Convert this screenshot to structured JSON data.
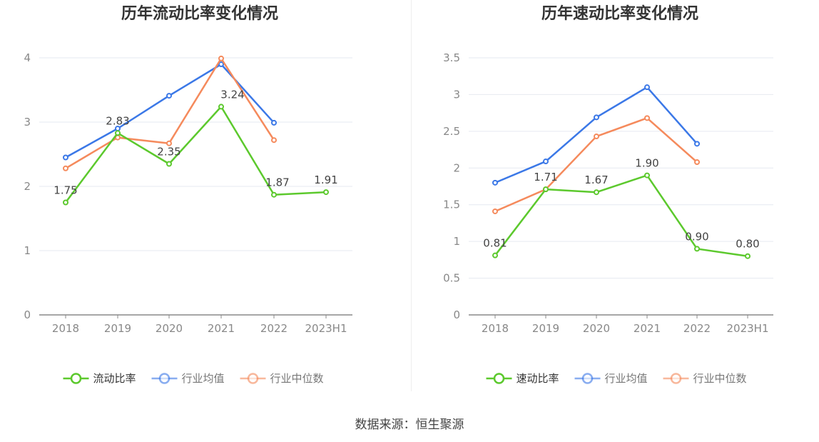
{
  "chart_data": [
    {
      "type": "line",
      "title": "历年流动比率变化情况",
      "categories": [
        "2018",
        "2019",
        "2020",
        "2021",
        "2022",
        "2023H1"
      ],
      "ylim": [
        0,
        4
      ],
      "yticks": [
        0,
        1,
        2,
        3,
        4
      ],
      "ytick_labels": [
        "0",
        "1",
        "2",
        "3",
        "4"
      ],
      "grid": true,
      "legend_position": "bottom-center",
      "series": [
        {
          "name": "流动比率",
          "color": "#5cc92d",
          "values": [
            1.75,
            2.83,
            2.35,
            3.24,
            1.87,
            1.91
          ],
          "labels": [
            "1.75",
            "2.83",
            "2.35",
            "3.24",
            "1.87",
            "1.91"
          ],
          "show_labels": true
        },
        {
          "name": "行业均值",
          "color": "#3b78e7",
          "values": [
            2.45,
            2.9,
            3.41,
            3.9,
            2.99,
            null
          ],
          "show_labels": false
        },
        {
          "name": "行业中位数",
          "color": "#f58a5c",
          "values": [
            2.28,
            2.76,
            2.67,
            3.99,
            2.72,
            null
          ],
          "show_labels": false
        }
      ]
    },
    {
      "type": "line",
      "title": "历年速动比率变化情况",
      "categories": [
        "2018",
        "2019",
        "2020",
        "2021",
        "2022",
        "2023H1"
      ],
      "ylim": [
        0,
        3.5
      ],
      "yticks": [
        0,
        0.5,
        1,
        1.5,
        2,
        2.5,
        3,
        3.5
      ],
      "ytick_labels": [
        "0",
        "0.5",
        "1",
        "1.5",
        "2",
        "2.5",
        "3",
        "3.5"
      ],
      "grid": true,
      "legend_position": "bottom-center",
      "series": [
        {
          "name": "速动比率",
          "color": "#5cc92d",
          "values": [
            0.81,
            1.71,
            1.67,
            1.9,
            0.9,
            0.8
          ],
          "labels": [
            "0.81",
            "1.71",
            "1.67",
            "1.90",
            "0.90",
            "0.80"
          ],
          "show_labels": true
        },
        {
          "name": "行业均值",
          "color": "#3b78e7",
          "values": [
            1.8,
            2.09,
            2.69,
            3.1,
            2.33,
            null
          ],
          "show_labels": false
        },
        {
          "name": "行业中位数",
          "color": "#f58a5c",
          "values": [
            1.41,
            1.71,
            2.43,
            2.68,
            2.08,
            null
          ],
          "show_labels": false
        }
      ]
    }
  ],
  "footer": {
    "source": "数据来源：恒生聚源"
  }
}
